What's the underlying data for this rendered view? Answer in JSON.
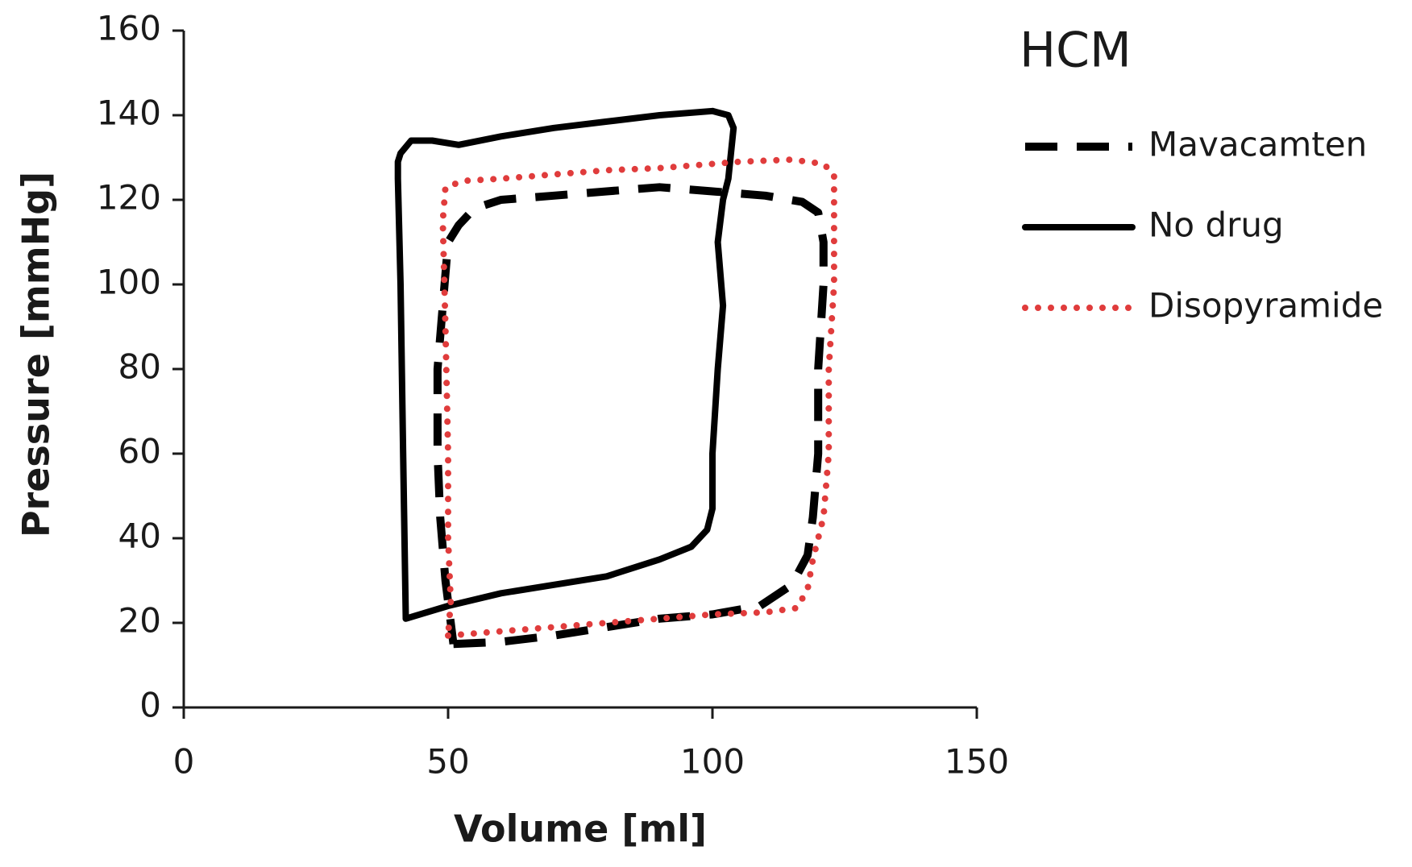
{
  "chart_data": {
    "type": "line",
    "x_label": "Volume [ml]",
    "y_label": "Pressure [mmHg]",
    "legend_title": "HCM",
    "legend_position": "right",
    "xlim": [
      0,
      150
    ],
    "xticks": [
      0,
      50,
      100,
      150
    ],
    "ylim": [
      0,
      160
    ],
    "yticks": [
      0,
      20,
      40,
      60,
      80,
      100,
      120,
      140,
      160
    ],
    "grid": false,
    "series": [
      {
        "name": "Mavacamten",
        "color": "#000000",
        "style": "dashed",
        "x": [
          51,
          60,
          70,
          80,
          90,
          100,
          109,
          115,
          118,
          119,
          120,
          120,
          121,
          121,
          120,
          117,
          110,
          100,
          90,
          80,
          70,
          60,
          55,
          52,
          50,
          49,
          48,
          48,
          48.5,
          49.5,
          50,
          51
        ],
        "values": [
          15,
          15.5,
          17,
          19,
          21,
          22,
          24,
          29,
          36,
          45,
          60,
          80,
          100,
          110,
          117,
          119.5,
          121,
          122,
          123,
          122,
          121,
          120,
          118,
          114,
          110,
          95,
          80,
          60,
          45,
          30,
          25,
          15
        ]
      },
      {
        "name": "No drug",
        "color": "#000000",
        "style": "solid",
        "x": [
          42,
          41.5,
          41,
          40.5,
          40.5,
          41,
          43,
          47,
          52,
          60,
          70,
          80,
          90,
          100,
          103,
          104,
          103,
          102,
          101,
          102,
          101,
          100,
          100,
          99,
          96,
          90,
          80,
          70,
          60,
          50,
          42
        ],
        "values": [
          21,
          60,
          100,
          125,
          129,
          131,
          134,
          134,
          133,
          135,
          137,
          138.5,
          140,
          141,
          140,
          137,
          125,
          120,
          110,
          95,
          80,
          60,
          47,
          42,
          38,
          35,
          31,
          29,
          27,
          24,
          21
        ]
      },
      {
        "name": "Disopyramide",
        "color": "#e03c3c",
        "style": "dotted",
        "x": [
          50,
          60,
          70,
          80,
          90,
          100,
          110,
          116,
          118,
          119,
          121,
          122,
          122,
          123,
          123,
          123,
          121,
          115,
          105,
          100,
          90,
          80,
          70,
          60,
          53,
          49.5,
          49,
          49.5,
          50,
          50,
          50.5,
          50
        ],
        "values": [
          17,
          18,
          19,
          20,
          21,
          22,
          22.5,
          23.5,
          28,
          35,
          45,
          60,
          80,
          100,
          118,
          126,
          128.5,
          129.5,
          129,
          128.5,
          127.5,
          127,
          126,
          125,
          124.5,
          123,
          115,
          90,
          60,
          40,
          25,
          17
        ]
      }
    ]
  }
}
